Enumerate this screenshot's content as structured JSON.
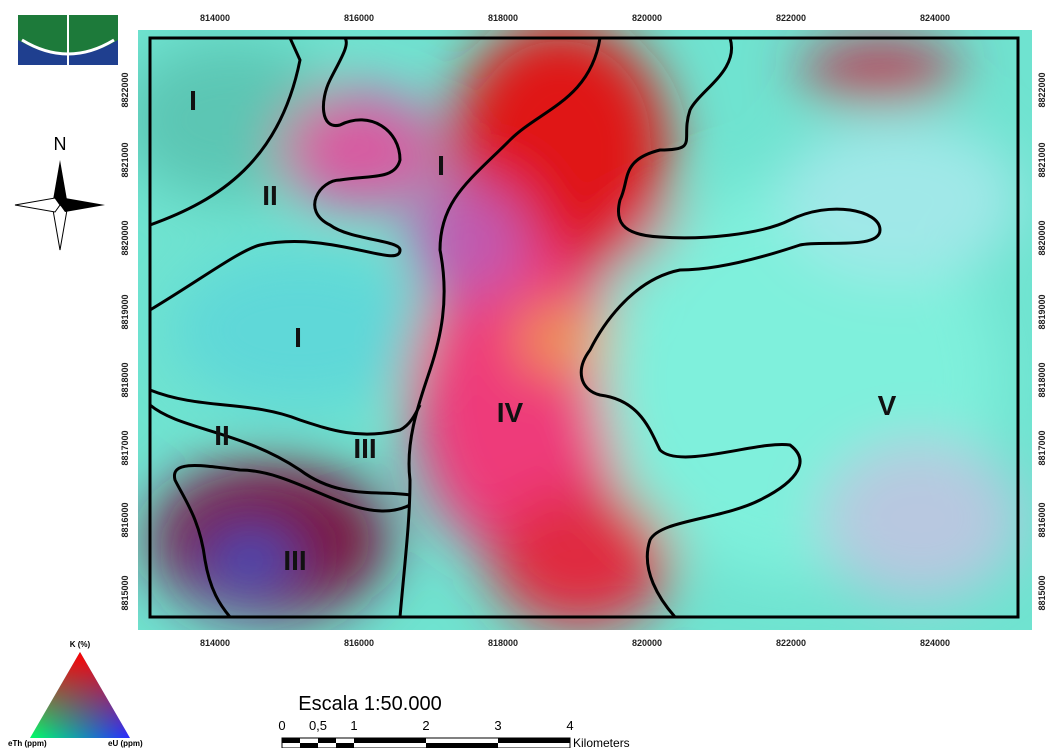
{
  "map": {
    "x_labels": [
      "814000",
      "816000",
      "818000",
      "820000",
      "822000",
      "824000"
    ],
    "y_labels": [
      "8822000",
      "8821000",
      "8820000",
      "8819000",
      "8818000",
      "8817000",
      "8816000",
      "8815000"
    ],
    "north": "N",
    "regions": [
      "I",
      "II",
      "I",
      "I",
      "II",
      "III",
      "III",
      "IV",
      "V"
    ]
  },
  "scale": {
    "title": "Escala 1:50.000",
    "ticks": [
      "0",
      "0,5",
      "1",
      "2",
      "3",
      "4"
    ],
    "unit": "Kilometers"
  },
  "legend": {
    "top": "K (%)",
    "left": "eTh (ppm)",
    "right": "eU (ppm)"
  }
}
